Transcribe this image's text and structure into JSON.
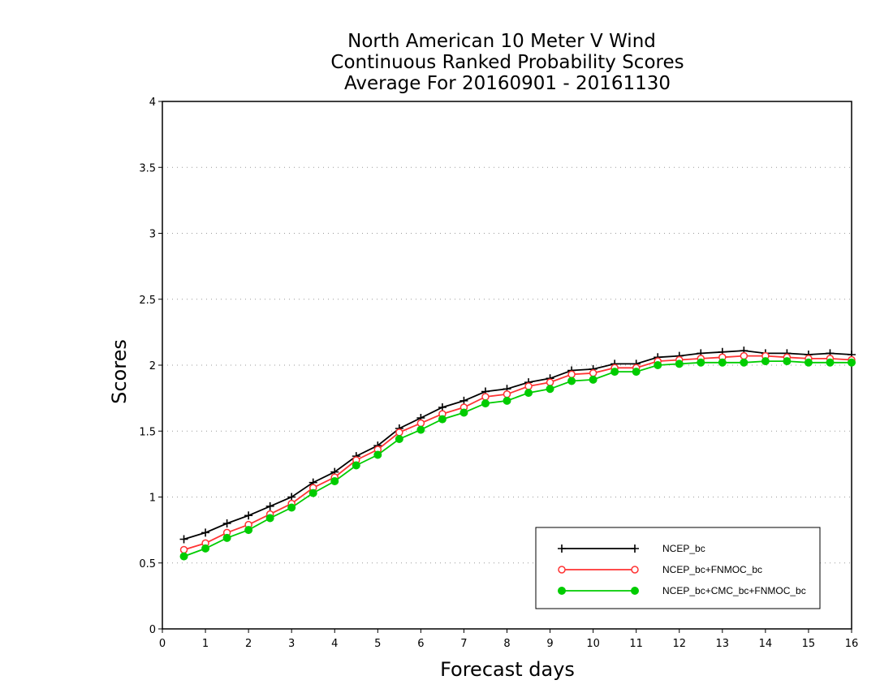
{
  "chart_data": {
    "type": "line",
    "title_lines": [
      "North American 10 Meter V Wind",
      "Continuous Ranked Probability Scores",
      "Average For 20160901 - 20161130"
    ],
    "xlabel": "Forecast days",
    "ylabel": "Scores",
    "xlim": [
      0,
      16
    ],
    "ylim": [
      0,
      4
    ],
    "xticks": [
      "0",
      "1",
      "2",
      "3",
      "4",
      "5",
      "6",
      "7",
      "8",
      "9",
      "10",
      "11",
      "12",
      "13",
      "14",
      "15",
      "16"
    ],
    "yticks": [
      "0",
      "0.5",
      "1",
      "1.5",
      "2",
      "2.5",
      "3",
      "3.5",
      "4"
    ],
    "grid": "horizontal dotted",
    "legend_position": "bottom-right",
    "x": [
      0.5,
      1,
      1.5,
      2,
      2.5,
      3,
      3.5,
      4,
      4.5,
      5,
      5.5,
      6,
      6.5,
      7,
      7.5,
      8,
      8.5,
      9,
      9.5,
      10,
      10.5,
      11,
      11.5,
      12,
      12.5,
      13,
      13.5,
      14,
      14.5,
      15,
      15.5,
      16
    ],
    "series": [
      {
        "name": "NCEP_bc",
        "color": "#000000",
        "marker": "plus",
        "values": [
          0.68,
          0.73,
          0.8,
          0.86,
          0.93,
          1.0,
          1.11,
          1.19,
          1.31,
          1.39,
          1.52,
          1.6,
          1.68,
          1.73,
          1.8,
          1.82,
          1.87,
          1.9,
          1.96,
          1.97,
          2.01,
          2.01,
          2.06,
          2.07,
          2.09,
          2.1,
          2.11,
          2.09,
          2.09,
          2.08,
          2.09,
          2.08
        ]
      },
      {
        "name": "NCEP_bc+FNMOC_bc",
        "color": "#ff3333",
        "marker": "open-circle",
        "values": [
          0.6,
          0.65,
          0.73,
          0.79,
          0.87,
          0.95,
          1.07,
          1.15,
          1.28,
          1.36,
          1.49,
          1.56,
          1.63,
          1.68,
          1.76,
          1.78,
          1.84,
          1.87,
          1.93,
          1.94,
          1.98,
          1.98,
          2.03,
          2.04,
          2.05,
          2.06,
          2.07,
          2.07,
          2.06,
          2.05,
          2.05,
          2.04
        ]
      },
      {
        "name": "NCEP_bc+CMC_bc+FNMOC_bc",
        "color": "#00cc00",
        "marker": "filled-circle",
        "values": [
          0.55,
          0.61,
          0.69,
          0.75,
          0.84,
          0.92,
          1.03,
          1.12,
          1.24,
          1.32,
          1.44,
          1.51,
          1.59,
          1.64,
          1.71,
          1.73,
          1.79,
          1.82,
          1.88,
          1.89,
          1.95,
          1.95,
          2.0,
          2.01,
          2.02,
          2.02,
          2.02,
          2.03,
          2.03,
          2.02,
          2.02,
          2.02
        ]
      }
    ]
  }
}
